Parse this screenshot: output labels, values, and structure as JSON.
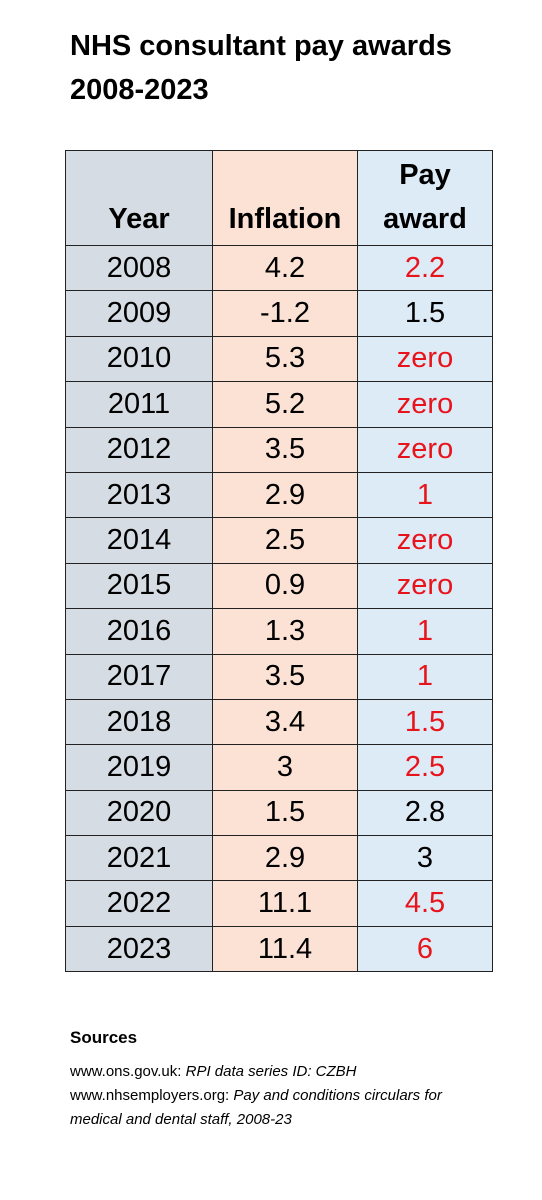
{
  "title": "NHS consultant pay awards 2008-2023",
  "table": {
    "header": [
      "Year",
      "Inflation",
      "Pay award"
    ],
    "column_colors": [
      "#d6dce4",
      "#fbe2d5",
      "#ddebf7"
    ],
    "rows": [
      [
        "2008",
        "4.2",
        "2.2"
      ],
      [
        "2009",
        "-1.2",
        "1.5"
      ],
      [
        "2010",
        "5.3",
        "zero"
      ],
      [
        "2011",
        "5.2",
        "zero"
      ],
      [
        "2012",
        "3.5",
        "zero"
      ],
      [
        "2013",
        "2.9",
        "1"
      ],
      [
        "2014",
        "2.5",
        "zero"
      ],
      [
        "2015",
        "0.9",
        "zero"
      ],
      [
        "2016",
        "1.3",
        "1"
      ],
      [
        "2017",
        "3.5",
        "1"
      ],
      [
        "2018",
        "3.4",
        "1.5"
      ],
      [
        "2019",
        "3",
        "2.5"
      ],
      [
        "2020",
        "1.5",
        "2.8"
      ],
      [
        "2021",
        "2.9",
        "3"
      ],
      [
        "2022",
        "11.1",
        "4.5"
      ],
      [
        "2023",
        "11.4",
        "6"
      ]
    ],
    "pay_award_colors": [
      "#e8141c",
      "#000000",
      "#e8141c",
      "#e8141c",
      "#e8141c",
      "#e8141c",
      "#e8141c",
      "#e8141c",
      "#e8141c",
      "#e8141c",
      "#e8141c",
      "#e8141c",
      "#000000",
      "#000000",
      "#e8141c",
      "#e8141c"
    ]
  },
  "sources": {
    "heading": "Sources",
    "items": [
      {
        "site": "www.ons.gov.uk:",
        "description": "RPI data series ID: CZBH"
      },
      {
        "site": "www.nhsemployers.org:",
        "description": "Pay and conditions circulars for medical and dental staff, 2008-23"
      }
    ]
  }
}
